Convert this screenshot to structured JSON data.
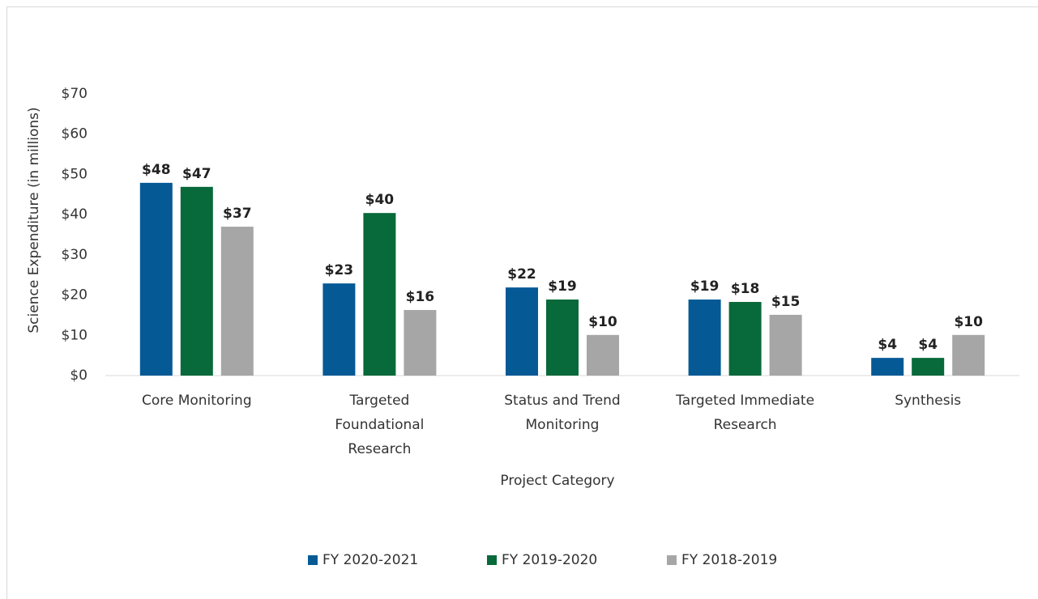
{
  "chart_data": {
    "type": "bar",
    "x_label": "Project Category",
    "y_label": "Science Expenditure (in millions)",
    "categories": [
      "Core Monitoring",
      "Targeted\nFoundational\nResearch",
      "Status and Trend\nMonitoring",
      "Targeted Immediate\nResearch",
      "Synthesis"
    ],
    "series": [
      {
        "name": "FY 2020-2021",
        "color": "#055a96",
        "values": [
          47.9,
          22.9,
          21.9,
          18.9,
          4.4
        ],
        "value_labels": [
          "$48",
          "$23",
          "$22",
          "$19",
          "$4"
        ]
      },
      {
        "name": "FY 2019-2020",
        "color": "#08693a",
        "values": [
          46.9,
          40.4,
          18.9,
          18.3,
          4.4
        ],
        "value_labels": [
          "$47",
          "$40",
          "$19",
          "$18",
          "$4"
        ]
      },
      {
        "name": "FY 2018-2019",
        "color": "#a6a6a6",
        "values": [
          37.0,
          16.3,
          10.1,
          15.1,
          10.1
        ],
        "value_labels": [
          "$37",
          "$16",
          "$10",
          "$15",
          "$10"
        ]
      }
    ],
    "ylim": [
      0,
      70
    ],
    "yticks": [
      {
        "value": 0,
        "label": "$0"
      },
      {
        "value": 10,
        "label": "$10"
      },
      {
        "value": 20,
        "label": "$20"
      },
      {
        "value": 30,
        "label": "$30"
      },
      {
        "value": 40,
        "label": "$40"
      },
      {
        "value": 50,
        "label": "$50"
      },
      {
        "value": 60,
        "label": "$60"
      },
      {
        "value": 70,
        "label": "$70"
      }
    ],
    "grid": false,
    "legend": "bottom"
  }
}
